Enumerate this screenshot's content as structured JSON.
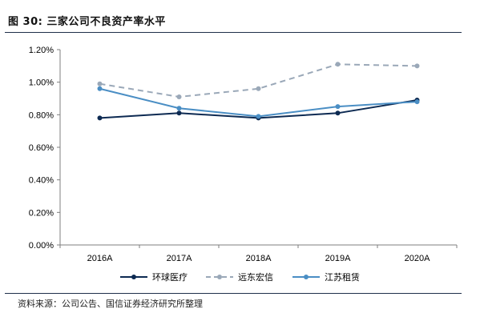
{
  "header": {
    "title": "图 30:  三家公司不良资产率水平"
  },
  "footer": {
    "source": "资料来源：公司公告、国信证券经济研究所整理"
  },
  "chart_data": {
    "type": "line",
    "categories": [
      "2016A",
      "2017A",
      "2018A",
      "2019A",
      "2020A"
    ],
    "ylim": [
      0,
      1.2
    ],
    "yticks": [
      "0.00%",
      "0.20%",
      "0.40%",
      "0.60%",
      "0.80%",
      "1.00%",
      "1.20%"
    ],
    "grid": false,
    "legend_position": "bottom",
    "series": [
      {
        "name": "环球医疗",
        "values": [
          0.78,
          0.81,
          0.78,
          0.81,
          0.89
        ],
        "color": "#0d2a52",
        "dash": false
      },
      {
        "name": "远东宏信",
        "values": [
          0.99,
          0.91,
          0.96,
          1.11,
          1.1
        ],
        "color": "#9aa8b8",
        "dash": true
      },
      {
        "name": "江苏租赁",
        "values": [
          0.96,
          0.84,
          0.79,
          0.85,
          0.88
        ],
        "color": "#4a8ec4",
        "dash": false
      }
    ]
  }
}
